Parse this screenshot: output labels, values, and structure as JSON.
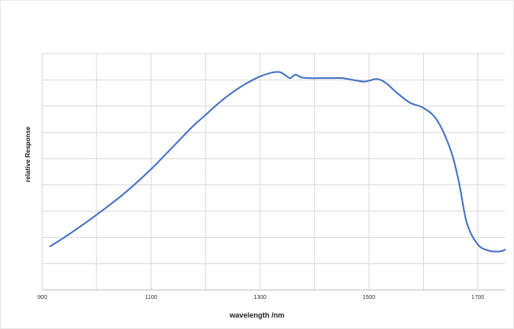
{
  "chart_data": {
    "type": "line",
    "title": "",
    "xlabel": "wavelength  /nm",
    "ylabel": "relative Response",
    "xlim": [
      900,
      1750
    ],
    "ylim": [
      0,
      1
    ],
    "x_ticks": [
      900,
      1100,
      1300,
      1500,
      1700
    ],
    "x_tick_labels": [
      "900",
      "1100",
      "1300",
      "1500",
      "1700"
    ],
    "y_tick_labels": [],
    "grid": true,
    "legend": "none",
    "colors": {
      "line": "#4472C4",
      "grid": "#D9D9D9",
      "axis": "#BFBFBF"
    },
    "series": [
      {
        "x": [
          915,
          950,
          1000,
          1050,
          1100,
          1125,
          1150,
          1175,
          1200,
          1225,
          1250,
          1275,
          1300,
          1320,
          1335,
          1345,
          1355,
          1365,
          1375,
          1390,
          1410,
          1430,
          1450,
          1470,
          1490,
          1500,
          1515,
          1530,
          1550,
          1575,
          1600,
          1625,
          1650,
          1665,
          1680,
          1700,
          1720,
          1740,
          1750
        ],
        "y": [
          0.03,
          0.1,
          0.21,
          0.33,
          0.47,
          0.55,
          0.63,
          0.71,
          0.78,
          0.85,
          0.91,
          0.96,
          1.0,
          1.02,
          1.025,
          1.01,
          0.99,
          1.01,
          0.995,
          0.99,
          0.99,
          0.99,
          0.99,
          0.98,
          0.97,
          0.975,
          0.985,
          0.965,
          0.91,
          0.85,
          0.82,
          0.75,
          0.58,
          0.4,
          0.16,
          0.04,
          0.005,
          0.0,
          0.01
        ]
      }
    ]
  }
}
